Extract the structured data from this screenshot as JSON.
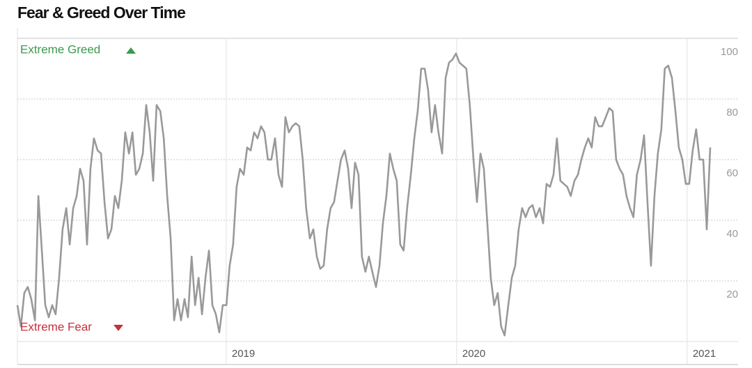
{
  "chart_data": {
    "type": "line",
    "title": "Fear & Greed Over Time",
    "annotations": [
      "Extreme Greed",
      "Extreme Fear"
    ],
    "color": "#999999",
    "annotation_colors": [
      "#3a9a4e",
      "#c62f3b"
    ],
    "xlim": [
      2018.094,
      2021.221
    ],
    "xticks": [
      2019,
      2020,
      2021
    ],
    "ylim": [
      0,
      100
    ],
    "yticks": [
      20,
      40,
      60,
      80,
      100
    ],
    "grid": true,
    "x": [
      2018.094,
      2018.109,
      2018.124,
      2018.139,
      2018.154,
      2018.17,
      2018.185,
      2018.2,
      2018.215,
      2018.23,
      2018.245,
      2018.26,
      2018.275,
      2018.29,
      2018.306,
      2018.321,
      2018.336,
      2018.351,
      2018.366,
      2018.381,
      2018.396,
      2018.411,
      2018.426,
      2018.442,
      2018.457,
      2018.472,
      2018.487,
      2018.502,
      2018.517,
      2018.532,
      2018.547,
      2018.562,
      2018.578,
      2018.593,
      2018.608,
      2018.623,
      2018.638,
      2018.653,
      2018.668,
      2018.683,
      2018.698,
      2018.714,
      2018.729,
      2018.744,
      2018.759,
      2018.774,
      2018.789,
      2018.804,
      2018.819,
      2018.834,
      2018.85,
      2018.865,
      2018.88,
      2018.895,
      2018.91,
      2018.925,
      2018.94,
      2018.955,
      2018.97,
      2018.985,
      2019.001,
      2019.015,
      2019.03,
      2019.045,
      2019.06,
      2019.076,
      2019.091,
      2019.106,
      2019.121,
      2019.136,
      2019.151,
      2019.166,
      2019.181,
      2019.196,
      2019.212,
      2019.227,
      2019.242,
      2019.257,
      2019.272,
      2019.287,
      2019.302,
      2019.317,
      2019.332,
      2019.347,
      2019.363,
      2019.378,
      2019.393,
      2019.408,
      2019.423,
      2019.438,
      2019.453,
      2019.468,
      2019.483,
      2019.498,
      2019.514,
      2019.529,
      2019.544,
      2019.559,
      2019.574,
      2019.589,
      2019.604,
      2019.619,
      2019.634,
      2019.65,
      2019.665,
      2019.68,
      2019.695,
      2019.71,
      2019.725,
      2019.74,
      2019.755,
      2019.77,
      2019.785,
      2019.801,
      2019.816,
      2019.831,
      2019.846,
      2019.861,
      2019.876,
      2019.891,
      2019.906,
      2019.921,
      2019.937,
      2019.952,
      2019.967,
      2019.982,
      2019.997,
      2020.012,
      2020.027,
      2020.042,
      2020.057,
      2020.073,
      2020.088,
      2020.103,
      2020.118,
      2020.133,
      2020.148,
      2020.163,
      2020.178,
      2020.193,
      2020.208,
      2020.224,
      2020.239,
      2020.254,
      2020.269,
      2020.284,
      2020.299,
      2020.314,
      2020.329,
      2020.344,
      2020.36,
      2020.375,
      2020.39,
      2020.405,
      2020.42,
      2020.435,
      2020.45,
      2020.465,
      2020.48,
      2020.495,
      2020.511,
      2020.526,
      2020.541,
      2020.556,
      2020.571,
      2020.586,
      2020.601,
      2020.616,
      2020.631,
      2020.647,
      2020.662,
      2020.677,
      2020.692,
      2020.707,
      2020.722,
      2020.737,
      2020.752,
      2020.767,
      2020.782,
      2020.798,
      2020.813,
      2020.828,
      2020.843,
      2020.858,
      2020.873,
      2020.888,
      2020.903,
      2020.918,
      2020.934,
      2020.949,
      2020.964,
      2020.979,
      2020.994,
      2021.009,
      2021.024,
      2021.039,
      2021.054,
      2021.07,
      2021.085,
      2021.1
    ],
    "values": [
      12,
      5,
      16,
      18,
      14,
      7,
      48,
      30,
      12,
      8,
      12,
      9,
      21,
      37,
      44,
      32,
      44,
      48,
      57,
      53,
      32,
      57,
      67,
      63,
      62,
      46,
      34,
      37,
      48,
      44,
      53,
      69,
      62,
      69,
      55,
      57,
      62,
      78,
      69,
      53,
      78,
      76,
      67,
      48,
      34,
      7,
      14,
      7,
      14,
      8,
      28,
      12,
      21,
      9,
      21,
      30,
      12,
      9,
      3,
      12,
      12,
      25,
      32,
      51,
      57,
      55,
      64,
      63,
      69,
      67,
      71,
      69,
      60,
      60,
      67,
      55,
      51,
      74,
      69,
      71,
      72,
      71,
      60,
      44,
      34,
      37,
      28,
      24,
      25,
      37,
      44,
      46,
      53,
      60,
      63,
      57,
      44,
      59,
      55,
      28,
      23,
      28,
      23,
      18,
      25,
      39,
      48,
      62,
      57,
      53,
      32,
      30,
      44,
      55,
      67,
      76,
      90,
      90,
      83,
      69,
      78,
      69,
      62,
      87,
      92,
      93,
      95,
      92,
      91,
      90,
      78,
      60,
      46,
      62,
      57,
      39,
      21,
      12,
      16,
      5,
      2,
      12,
      21,
      25,
      37,
      44,
      41,
      44,
      45,
      41,
      44,
      39,
      52,
      51,
      55,
      67,
      53,
      52,
      51,
      48,
      53,
      55,
      60,
      64,
      67,
      64,
      74,
      71,
      71,
      74,
      77,
      76,
      60,
      57,
      55,
      48,
      44,
      41,
      55,
      60,
      68,
      46,
      25,
      48,
      62,
      70,
      90,
      91,
      87,
      76,
      64,
      60,
      52,
      52,
      63,
      70,
      60,
      60,
      37,
      64
    ]
  }
}
